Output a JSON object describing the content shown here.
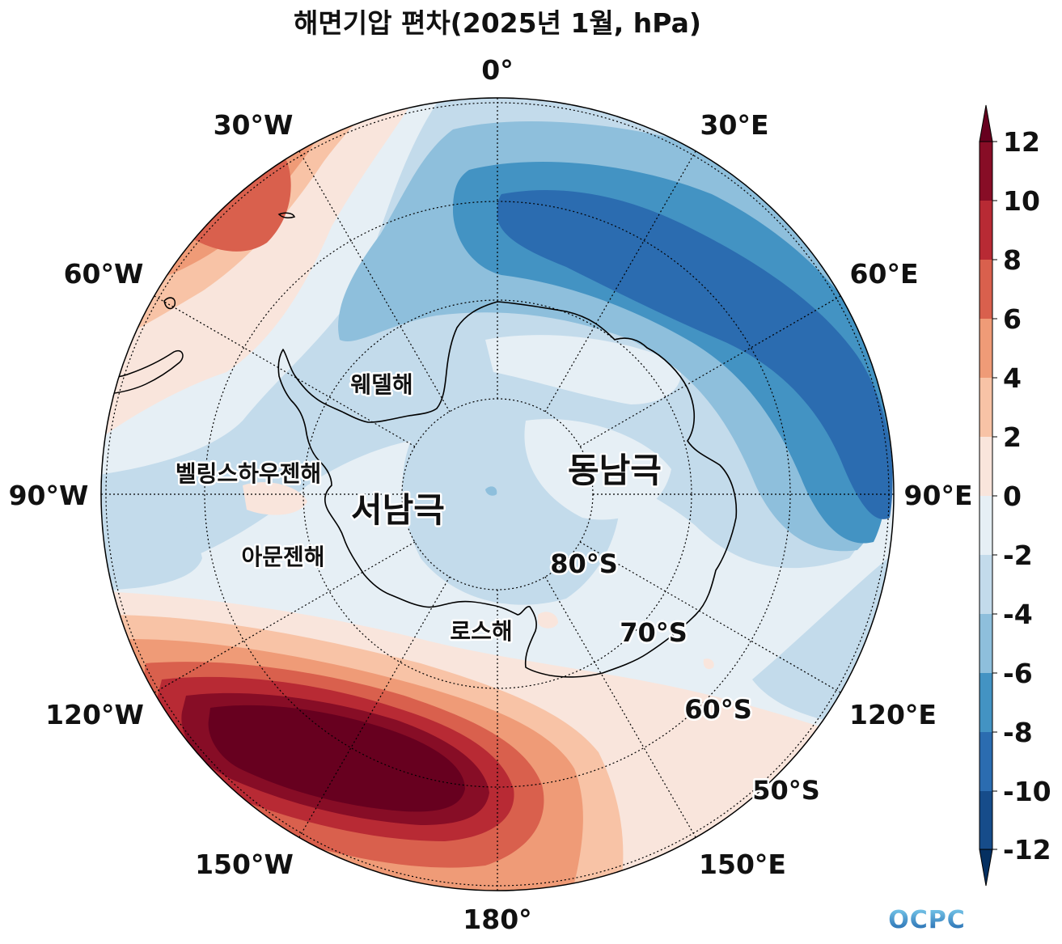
{
  "title": "해면기압 편차(2025년 1월, hPa)",
  "longitude_labels": [
    "0°",
    "30°E",
    "60°E",
    "90°E",
    "120°E",
    "150°E",
    "180°",
    "150°W",
    "120°W",
    "90°W",
    "60°W",
    "30°W"
  ],
  "latitude_labels": [
    "80°S",
    "70°S",
    "60°S",
    "50°S"
  ],
  "region_labels": {
    "weddell": "웨델해",
    "bellingshausen": "벨링스하우젠해",
    "amundsen": "아문젠해",
    "ross": "로스해",
    "west_antarctica": "서남극",
    "east_antarctica": "동남극"
  },
  "colorbar": {
    "tick_labels": [
      "12",
      "10",
      "8",
      "6",
      "4",
      "2",
      "0",
      "-2",
      "-4",
      "-6",
      "-8",
      "-10",
      "-12"
    ],
    "colors": [
      "#053061",
      "#164c8a",
      "#2b6cb0",
      "#4393c3",
      "#8ebfdc",
      "#c3dbeb",
      "#e6eff5",
      "#f9e5dc",
      "#f8c3a6",
      "#ef9b77",
      "#d9604d",
      "#b82a34",
      "#870d26",
      "#67001f"
    ]
  },
  "logo_text": "OCPC",
  "colors": {
    "strong_positive": "#67001f",
    "strong_negative": "#2166ac",
    "land": "#000000"
  }
}
